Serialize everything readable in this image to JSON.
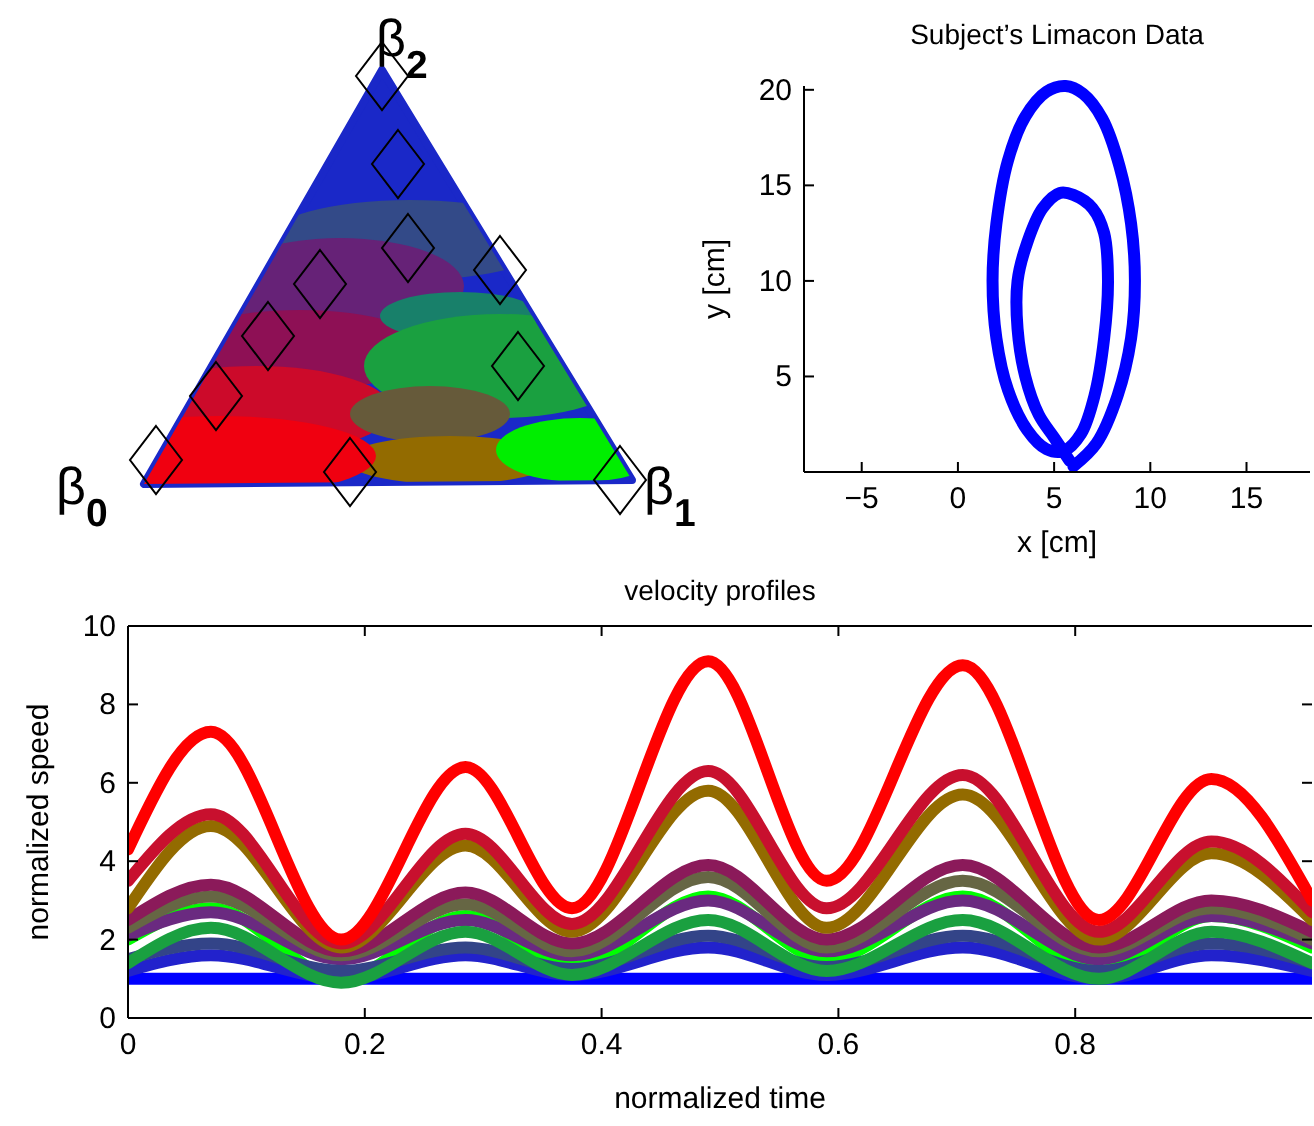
{
  "chart_data": [
    {
      "type": "other",
      "annotations": [
        "β$_{0}$",
        "β$_{1}$",
        "β$_{2}$"
      ]
    },
    {
      "type": "line",
      "title": "Subject’s Limacon Data",
      "xlabel": "x [cm]",
      "ylabel": "y [cm]",
      "xlim": [
        -8,
        18.3
      ],
      "ylim": [
        0,
        20.2
      ],
      "xticks": [
        -5,
        0,
        5,
        10,
        15
      ],
      "yticks": [
        5,
        10,
        15,
        20
      ],
      "series": [
        {
          "color": "#0000ff",
          "x": [
            6,
            7.2,
            8.3,
            9,
            9.2,
            9,
            8.4,
            7.5,
            6.5,
            5.6,
            4.6,
            3.5,
            2.6,
            2,
            1.8,
            2,
            2.6,
            3.6,
            4.6,
            5.5,
            6.4,
            7.1,
            7.6,
            7.8,
            7.6,
            7,
            6,
            5.3,
            4.4,
            3.6,
            3.1,
            3.1,
            3.5,
            4.2,
            5,
            5.8
          ],
          "values": [
            0.3,
            1.5,
            4,
            7,
            10,
            13,
            16,
            18.5,
            19.8,
            20.2,
            19.9,
            18.6,
            16.3,
            13,
            10,
            7,
            4.3,
            2.2,
            1.2,
            1.1,
            2,
            4,
            7,
            10,
            12.5,
            13.8,
            14.5,
            14.6,
            13.8,
            12,
            10,
            7.5,
            5,
            3,
            1.8,
            0.6
          ]
        }
      ]
    },
    {
      "type": "line",
      "title": "velocity profiles",
      "xlabel": "normalized time",
      "ylabel": "normalized speed",
      "xlim": [
        0,
        1
      ],
      "ylim": [
        0,
        10
      ],
      "xticks": [
        0,
        0.2,
        0.4,
        0.6,
        0.8
      ],
      "yticks": [
        0,
        2,
        4,
        6,
        8,
        10
      ],
      "x": [
        0,
        0.07,
        0.18,
        0.285,
        0.375,
        0.49,
        0.59,
        0.705,
        0.82,
        0.915,
        1
      ],
      "series": [
        {
          "color": "#0000ff",
          "values": [
            1,
            1,
            1,
            1,
            1,
            1,
            1,
            1,
            1,
            1,
            1
          ]
        },
        {
          "color": "#2222cc",
          "values": [
            1.2,
            1.6,
            1,
            1.6,
            1.1,
            1.8,
            1.1,
            1.8,
            1,
            1.6,
            1.2
          ]
        },
        {
          "color": "#00ff00",
          "values": [
            2,
            2.8,
            1,
            2.6,
            1.3,
            3.1,
            1.5,
            3.1,
            1.2,
            2.6,
            1.8
          ]
        },
        {
          "color": "#6a2a80",
          "values": [
            2.1,
            2.7,
            1.5,
            2.5,
            1.6,
            3,
            1.7,
            3,
            1.5,
            2.6,
            1.9
          ]
        },
        {
          "color": "#334488",
          "values": [
            1.5,
            1.9,
            1.2,
            1.8,
            1.25,
            2.1,
            1.3,
            2.1,
            1.2,
            1.9,
            1.4
          ]
        },
        {
          "color": "#666644",
          "values": [
            2.3,
            3.1,
            1.6,
            2.9,
            1.7,
            3.6,
            1.8,
            3.5,
            1.7,
            2.8,
            2
          ]
        },
        {
          "color": "#8b1a5a",
          "values": [
            2.5,
            3.4,
            1.7,
            3.2,
            1.9,
            3.9,
            2,
            3.9,
            1.8,
            3,
            2.2
          ]
        },
        {
          "color": "#1aa040",
          "values": [
            1.4,
            2.3,
            0.9,
            2.2,
            1.1,
            2.5,
            1.2,
            2.5,
            1,
            2.2,
            1.4
          ]
        },
        {
          "color": "#936b00",
          "values": [
            2.8,
            4.9,
            1.8,
            4.4,
            2.2,
            5.8,
            2.3,
            5.7,
            2,
            4.2,
            2.5
          ]
        },
        {
          "color": "#c8102e",
          "values": [
            3.5,
            5.2,
            1.9,
            4.7,
            2.4,
            6.3,
            2.8,
            6.2,
            2.2,
            4.5,
            2.7
          ]
        },
        {
          "color": "#ff0000",
          "values": [
            4.3,
            7.3,
            2,
            6.4,
            2.8,
            9.1,
            3.5,
            9,
            2.5,
            6.1,
            3
          ]
        }
      ]
    }
  ]
}
